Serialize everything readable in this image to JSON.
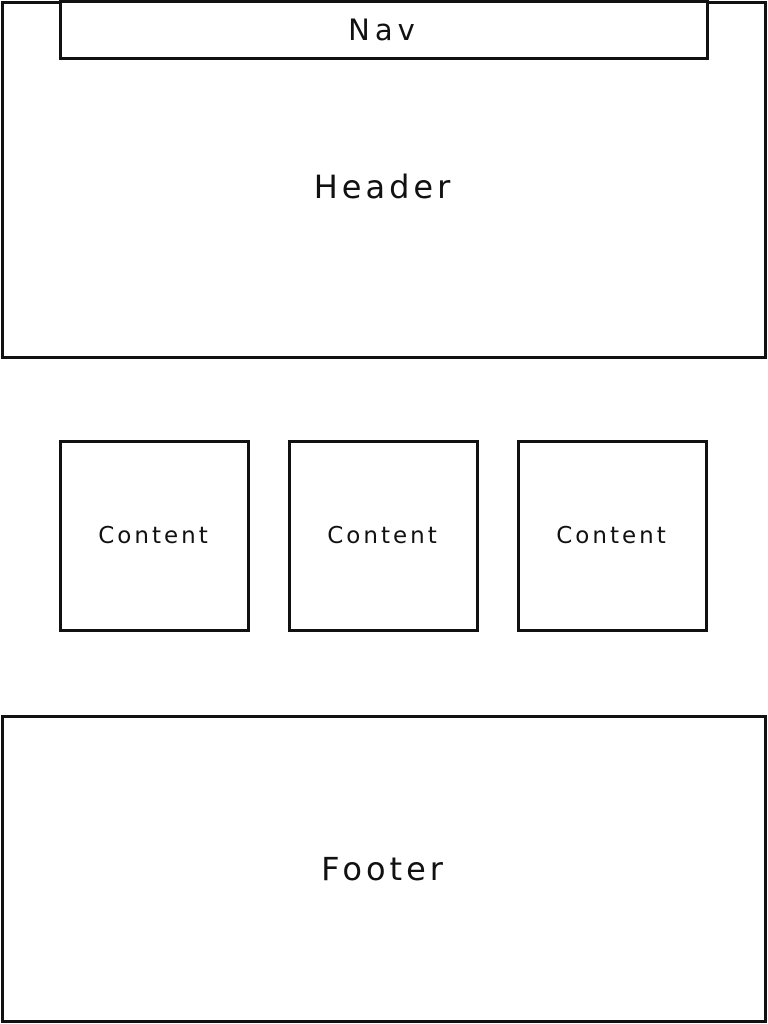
{
  "nav": {
    "label": "Nav"
  },
  "header": {
    "label": "Header"
  },
  "content": [
    {
      "label": "Content"
    },
    {
      "label": "Content"
    },
    {
      "label": "Content"
    }
  ],
  "footer": {
    "label": "Footer"
  },
  "colors": {
    "stroke": "#111111",
    "background": "#ffffff"
  }
}
